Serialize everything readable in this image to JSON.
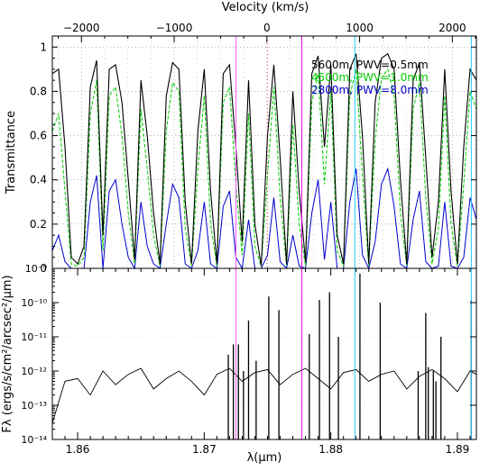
{
  "chart_data": [
    {
      "type": "line",
      "panel": "top",
      "top_axis_label": "Velocity (km/s)",
      "top_ticks": [
        "−2000",
        "−1000",
        "0",
        "1000",
        "2000"
      ],
      "top_tick_values": [
        -2000,
        -1000,
        0,
        1000,
        2000
      ],
      "ylabel": "Transmittance",
      "ylim": [
        0,
        1.05
      ],
      "y_ticks": [
        "0",
        "0.2",
        "0.4",
        "0.6",
        "0.8",
        "1"
      ],
      "y_tick_values": [
        0,
        0.2,
        0.4,
        0.6,
        0.8,
        1
      ],
      "xlim": [
        1.858,
        1.8915
      ],
      "grid": true,
      "legend_position": "top-right",
      "series": [
        {
          "name": "5600m, PWV=0.5mm",
          "color": "#000000",
          "x": [
            1.858,
            1.8585,
            1.859,
            1.8595,
            1.86,
            1.8605,
            1.861,
            1.8615,
            1.862,
            1.8625,
            1.863,
            1.8635,
            1.864,
            1.8645,
            1.865,
            1.8655,
            1.866,
            1.8665,
            1.867,
            1.8675,
            1.868,
            1.8685,
            1.869,
            1.8695,
            1.87,
            1.8705,
            1.871,
            1.8715,
            1.872,
            1.8725,
            1.873,
            1.8735,
            1.874,
            1.8745,
            1.875,
            1.8755,
            1.876,
            1.8765,
            1.877,
            1.8775,
            1.878,
            1.8785,
            1.879,
            1.8795,
            1.88,
            1.8805,
            1.881,
            1.8815,
            1.882,
            1.8825,
            1.883,
            1.8835,
            1.884,
            1.8845,
            1.885,
            1.8855,
            1.886,
            1.8865,
            1.887,
            1.8875,
            1.888,
            1.8885,
            1.889,
            1.8895,
            1.89,
            1.8905,
            1.891,
            1.8915
          ],
          "values": [
            0.88,
            0.9,
            0.55,
            0.05,
            0.02,
            0.1,
            0.82,
            0.94,
            0.15,
            0.9,
            0.92,
            0.75,
            0.4,
            0.04,
            0.85,
            0.6,
            0.25,
            0.02,
            0.78,
            0.93,
            0.9,
            0.3,
            0.02,
            0.62,
            0.9,
            0.35,
            0.02,
            0.88,
            0.92,
            0.55,
            0.12,
            0.85,
            0.2,
            0.01,
            0.6,
            0.92,
            0.5,
            0.02,
            0.8,
            0.35,
            0.03,
            0.88,
            0.96,
            0.55,
            0.92,
            0.15,
            0.02,
            0.9,
            0.97,
            0.6,
            0.02,
            0.75,
            0.95,
            0.97,
            0.9,
            0.4,
            0.02,
            0.85,
            0.93,
            0.5,
            0.05,
            0.3,
            0.9,
            0.35,
            0.02,
            0.55,
            0.9,
            0.85
          ]
        },
        {
          "name": "4500m, PWV=1.0mm",
          "color": "#00cc00",
          "x": [
            1.858,
            1.8585,
            1.859,
            1.8595,
            1.86,
            1.8605,
            1.861,
            1.8615,
            1.862,
            1.8625,
            1.863,
            1.8635,
            1.864,
            1.8645,
            1.865,
            1.8655,
            1.866,
            1.8665,
            1.867,
            1.8675,
            1.868,
            1.8685,
            1.869,
            1.8695,
            1.87,
            1.8705,
            1.871,
            1.8715,
            1.872,
            1.8725,
            1.873,
            1.8735,
            1.874,
            1.8745,
            1.875,
            1.8755,
            1.876,
            1.8765,
            1.877,
            1.8775,
            1.878,
            1.8785,
            1.879,
            1.8795,
            1.88,
            1.8805,
            1.881,
            1.8815,
            1.882,
            1.8825,
            1.883,
            1.8835,
            1.884,
            1.8845,
            1.885,
            1.8855,
            1.886,
            1.8865,
            1.887,
            1.8875,
            1.888,
            1.8885,
            1.889,
            1.8895,
            1.89,
            1.8905,
            1.891,
            1.8915
          ],
          "values": [
            0.62,
            0.7,
            0.35,
            0.02,
            0.01,
            0.05,
            0.7,
            0.85,
            0.08,
            0.78,
            0.82,
            0.6,
            0.25,
            0.02,
            0.72,
            0.45,
            0.15,
            0.01,
            0.62,
            0.84,
            0.8,
            0.18,
            0.01,
            0.45,
            0.78,
            0.2,
            0.01,
            0.75,
            0.82,
            0.38,
            0.06,
            0.7,
            0.1,
            0.01,
            0.42,
            0.82,
            0.32,
            0.01,
            0.65,
            0.2,
            0.01,
            0.75,
            0.88,
            0.38,
            0.8,
            0.08,
            0.01,
            0.78,
            0.9,
            0.42,
            0.01,
            0.58,
            0.86,
            0.9,
            0.78,
            0.25,
            0.01,
            0.72,
            0.84,
            0.32,
            0.02,
            0.18,
            0.78,
            0.2,
            0.01,
            0.38,
            0.8,
            0.72
          ]
        },
        {
          "name": "2800m, PWV=8.0mm",
          "color": "#0000cc",
          "x": [
            1.858,
            1.8585,
            1.859,
            1.8595,
            1.86,
            1.8605,
            1.861,
            1.8615,
            1.862,
            1.8625,
            1.863,
            1.8635,
            1.864,
            1.8645,
            1.865,
            1.8655,
            1.866,
            1.8665,
            1.867,
            1.8675,
            1.868,
            1.8685,
            1.869,
            1.8695,
            1.87,
            1.8705,
            1.871,
            1.8715,
            1.872,
            1.8725,
            1.873,
            1.8735,
            1.874,
            1.8745,
            1.875,
            1.8755,
            1.876,
            1.8765,
            1.877,
            1.8775,
            1.878,
            1.8785,
            1.879,
            1.8795,
            1.88,
            1.8805,
            1.881,
            1.8815,
            1.882,
            1.8825,
            1.883,
            1.8835,
            1.884,
            1.8845,
            1.885,
            1.8855,
            1.886,
            1.8865,
            1.887,
            1.8875,
            1.888,
            1.8885,
            1.889,
            1.8895,
            1.89,
            1.8905,
            1.891,
            1.8915
          ],
          "values": [
            0.08,
            0.15,
            0.03,
            0.0,
            0.0,
            0.0,
            0.3,
            0.42,
            0.0,
            0.35,
            0.4,
            0.2,
            0.05,
            0.0,
            0.3,
            0.1,
            0.02,
            0.0,
            0.2,
            0.38,
            0.32,
            0.02,
            0.0,
            0.08,
            0.3,
            0.02,
            0.0,
            0.28,
            0.35,
            0.05,
            0.0,
            0.22,
            0.0,
            0.0,
            0.06,
            0.32,
            0.03,
            0.0,
            0.15,
            0.01,
            0.0,
            0.25,
            0.4,
            0.04,
            0.3,
            0.0,
            0.0,
            0.3,
            0.45,
            0.06,
            0.0,
            0.12,
            0.38,
            0.45,
            0.28,
            0.02,
            0.0,
            0.22,
            0.35,
            0.03,
            0.0,
            0.01,
            0.3,
            0.01,
            0.0,
            0.05,
            0.32,
            0.22
          ]
        }
      ]
    },
    {
      "type": "line",
      "panel": "bottom",
      "xlabel": "λ(μm)",
      "ylabel": "Fλ (ergs/s/cm²/arcsec²/μm)",
      "y_scale": "log",
      "ylim": [
        1e-14,
        1e-09
      ],
      "y_ticks": [
        "10⁻¹⁴",
        "10⁻¹³",
        "10⁻¹²",
        "10⁻¹¹",
        "10⁻¹⁰",
        "10⁻⁹"
      ],
      "y_tick_exponents": [
        -14,
        -13,
        -12,
        -11,
        -10,
        -9
      ],
      "x_ticks": [
        "1.86",
        "1.87",
        "1.88",
        "1.89"
      ],
      "x_tick_values": [
        1.86,
        1.87,
        1.88,
        1.89
      ],
      "xlim": [
        1.858,
        1.8915
      ],
      "continuum": {
        "x": [
          1.858,
          1.859,
          1.86,
          1.861,
          1.862,
          1.863,
          1.864,
          1.865,
          1.866,
          1.867,
          1.868,
          1.869,
          1.87,
          1.871,
          1.872,
          1.873,
          1.874,
          1.875,
          1.876,
          1.877,
          1.878,
          1.879,
          1.88,
          1.881,
          1.882,
          1.883,
          1.884,
          1.885,
          1.886,
          1.887,
          1.888,
          1.889,
          1.89,
          1.891,
          1.8915
        ],
        "values": [
          3e-14,
          5e-13,
          6e-13,
          2e-13,
          1e-12,
          4e-13,
          8e-13,
          1.2e-12,
          3e-13,
          6e-13,
          1e-12,
          5e-13,
          2e-13,
          8e-13,
          1.2e-12,
          5e-13,
          9e-13,
          1.1e-12,
          4e-13,
          8e-13,
          1.2e-12,
          6e-13,
          3e-13,
          9e-13,
          1.1e-12,
          5e-13,
          8e-13,
          1e-12,
          3e-13,
          7e-13,
          1.1e-12,
          6e-13,
          2.5e-13,
          1e-12,
          8e-13
        ]
      },
      "emission_lines": {
        "x": [
          1.8719,
          1.8723,
          1.8727,
          1.8731,
          1.8735,
          1.8741,
          1.8751,
          1.8759,
          1.8783,
          1.8791,
          1.8799,
          1.8806,
          1.8823,
          1.8839,
          1.8869,
          1.8875,
          1.8877,
          1.8881,
          1.8883,
          1.8887,
          1.8911
        ],
        "values": [
          3e-12,
          6e-12,
          6e-12,
          1e-12,
          3e-11,
          2e-12,
          1.5e-10,
          6e-11,
          1.2e-11,
          1.2e-10,
          2e-10,
          1e-11,
          7e-10,
          1e-10,
          1e-12,
          5e-11,
          1.3e-12,
          1e-12,
          5e-13,
          1e-11,
          1.2e-10
        ]
      },
      "vertical_markers": [
        {
          "x": 1.8725,
          "color": "#ff55ff"
        },
        {
          "x": 1.8777,
          "color": "#ee00ee"
        },
        {
          "x": 1.8819,
          "color": "#22ccff"
        },
        {
          "x": 1.8911,
          "color": "#22ccff"
        }
      ]
    }
  ]
}
